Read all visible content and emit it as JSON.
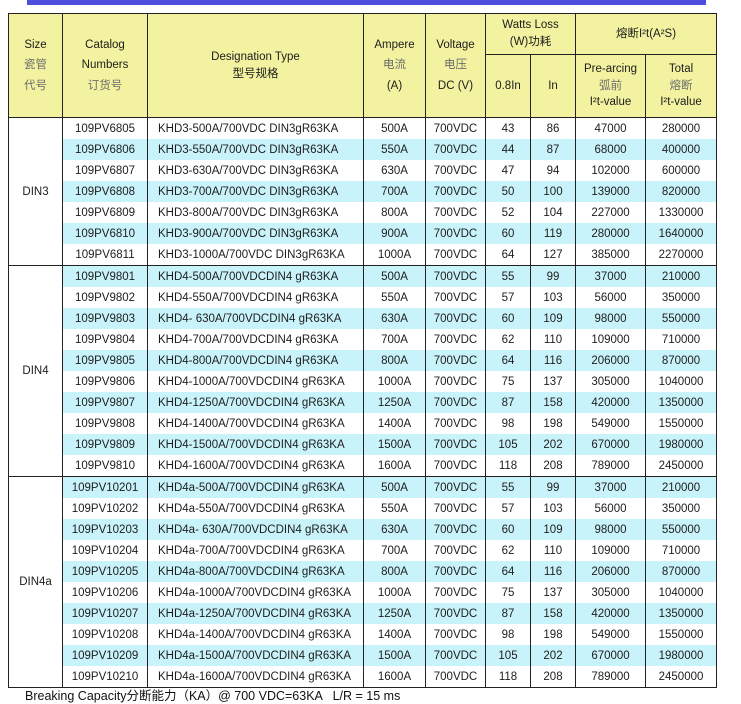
{
  "colors": {
    "accent_bar": "#4d4dde",
    "header_bg": "#f2f2a0",
    "row_highlight": "#c9f3fa",
    "border": "#222222"
  },
  "footer": {
    "note": "Breaking Capacity分断能力（KA）@ 700 VDC=63KA   L/R = 15 ms"
  },
  "table": {
    "header": {
      "size": {
        "l1": "Size",
        "l2": "瓷管",
        "l3": "代号"
      },
      "catalog": {
        "l1": "Catalog",
        "l2": "Numbers",
        "l3": "订货号"
      },
      "designation": {
        "l1": "Designation Type",
        "l2": "型号规格"
      },
      "ampere": {
        "l1": "Ampere",
        "l2": "电流",
        "l3": "(A)"
      },
      "voltage": {
        "l1": "Voltage",
        "l2": "电压",
        "l3": "DC (V)"
      },
      "watts_loss": {
        "l1": "Watts Loss",
        "l2": "(W)功耗"
      },
      "i2t": {
        "l1": "熔断I²t(A²S)"
      },
      "sub_08in": "0.8In",
      "sub_in": "In",
      "prearcing": {
        "l1": "Pre-arcing",
        "l2": "弧前",
        "l3": "I²t-value"
      },
      "total": {
        "l1": "Total",
        "l2": "熔断",
        "l3": "I²t-value"
      }
    },
    "groups": [
      {
        "size": "DIN3",
        "rows": [
          {
            "catalog": "109PV6805",
            "designation": "KHD3-500A/700VDC DIN3gR63KA",
            "ampere": "500A",
            "voltage": "700VDC",
            "w08": "43",
            "win": "86",
            "prearcing": "47000",
            "total": "280000",
            "highlight": false
          },
          {
            "catalog": "109PV6806",
            "designation": "KHD3-550A/700VDC DIN3gR63KA",
            "ampere": "550A",
            "voltage": "700VDC",
            "w08": "44",
            "win": "87",
            "prearcing": "68000",
            "total": "400000",
            "highlight": true
          },
          {
            "catalog": "109PV6807",
            "designation": "KHD3-630A/700VDC DIN3gR63KA",
            "ampere": "630A",
            "voltage": "700VDC",
            "w08": "47",
            "win": "94",
            "prearcing": "102000",
            "total": "600000",
            "highlight": false
          },
          {
            "catalog": "109PV6808",
            "designation": "KHD3-700A/700VDC DIN3gR63KA",
            "ampere": "700A",
            "voltage": "700VDC",
            "w08": "50",
            "win": "100",
            "prearcing": "139000",
            "total": "820000",
            "highlight": true
          },
          {
            "catalog": "109PV6809",
            "designation": "KHD3-800A/700VDC DIN3gR63KA",
            "ampere": "800A",
            "voltage": "700VDC",
            "w08": "52",
            "win": "104",
            "prearcing": "227000",
            "total": "1330000",
            "highlight": false
          },
          {
            "catalog": "109PV6810",
            "designation": "KHD3-900A/700VDC DIN3gR63KA",
            "ampere": "900A",
            "voltage": "700VDC",
            "w08": "60",
            "win": "119",
            "prearcing": "280000",
            "total": "1640000",
            "highlight": true
          },
          {
            "catalog": "109PV6811",
            "designation": "KHD3-1000A/700VDC DIN3gR63KA",
            "ampere": "1000A",
            "voltage": "700VDC",
            "w08": "64",
            "win": "127",
            "prearcing": "385000",
            "total": "2270000",
            "highlight": false
          }
        ]
      },
      {
        "size": "DIN4",
        "rows": [
          {
            "catalog": "109PV9801",
            "designation": "KHD4-500A/700VDCDIN4 gR63KA",
            "ampere": "500A",
            "voltage": "700VDC",
            "w08": "55",
            "win": "99",
            "prearcing": "37000",
            "total": "210000",
            "highlight": true
          },
          {
            "catalog": "109PV9802",
            "designation": "KHD4-550A/700VDCDIN4 gR63KA",
            "ampere": "550A",
            "voltage": "700VDC",
            "w08": "57",
            "win": "103",
            "prearcing": "56000",
            "total": "350000",
            "highlight": false
          },
          {
            "catalog": "109PV9803",
            "designation": "KHD4- 630A/700VDCDIN4 gR63KA",
            "ampere": "630A",
            "voltage": "700VDC",
            "w08": "60",
            "win": "109",
            "prearcing": "98000",
            "total": "550000",
            "highlight": true
          },
          {
            "catalog": "109PV9804",
            "designation": "KHD4-700A/700VDCDIN4 gR63KA",
            "ampere": "700A",
            "voltage": "700VDC",
            "w08": "62",
            "win": "110",
            "prearcing": "109000",
            "total": "710000",
            "highlight": false
          },
          {
            "catalog": "109PV9805",
            "designation": "KHD4-800A/700VDCDIN4 gR63KA",
            "ampere": "800A",
            "voltage": "700VDC",
            "w08": "64",
            "win": "116",
            "prearcing": "206000",
            "total": "870000",
            "highlight": true
          },
          {
            "catalog": "109PV9806",
            "designation": "KHD4-1000A/700VDCDIN4 gR63KA",
            "ampere": "1000A",
            "voltage": "700VDC",
            "w08": "75",
            "win": "137",
            "prearcing": "305000",
            "total": "1040000",
            "highlight": false
          },
          {
            "catalog": "109PV9807",
            "designation": "KHD4-1250A/700VDCDIN4 gR63KA",
            "ampere": "1250A",
            "voltage": "700VDC",
            "w08": "87",
            "win": "158",
            "prearcing": "420000",
            "total": "1350000",
            "highlight": true
          },
          {
            "catalog": "109PV9808",
            "designation": "KHD4-1400A/700VDCDIN4 gR63KA",
            "ampere": "1400A",
            "voltage": "700VDC",
            "w08": "98",
            "win": "198",
            "prearcing": "549000",
            "total": "1550000",
            "highlight": false
          },
          {
            "catalog": "109PV9809",
            "designation": "KHD4-1500A/700VDCDIN4 gR63KA",
            "ampere": "1500A",
            "voltage": "700VDC",
            "w08": "105",
            "win": "202",
            "prearcing": "670000",
            "total": "1980000",
            "highlight": true
          },
          {
            "catalog": "109PV9810",
            "designation": "KHD4-1600A/700VDCDIN4 gR63KA",
            "ampere": "1600A",
            "voltage": "700VDC",
            "w08": "118",
            "win": "208",
            "prearcing": "789000",
            "total": "2450000",
            "highlight": false
          }
        ]
      },
      {
        "size": "DIN4a",
        "rows": [
          {
            "catalog": "109PV10201",
            "designation": "KHD4a-500A/700VDCDIN4 gR63KA",
            "ampere": "500A",
            "voltage": "700VDC",
            "w08": "55",
            "win": "99",
            "prearcing": "37000",
            "total": "210000",
            "highlight": true
          },
          {
            "catalog": "109PV10202",
            "designation": "KHD4a-550A/700VDCDIN4 gR63KA",
            "ampere": "550A",
            "voltage": "700VDC",
            "w08": "57",
            "win": "103",
            "prearcing": "56000",
            "total": "350000",
            "highlight": false
          },
          {
            "catalog": "109PV10203",
            "designation": "KHD4a- 630A/700VDCDIN4 gR63KA",
            "ampere": "630A",
            "voltage": "700VDC",
            "w08": "60",
            "win": "109",
            "prearcing": "98000",
            "total": "550000",
            "highlight": true
          },
          {
            "catalog": "109PV10204",
            "designation": "KHD4a-700A/700VDCDIN4 gR63KA",
            "ampere": "700A",
            "voltage": "700VDC",
            "w08": "62",
            "win": "110",
            "prearcing": "109000",
            "total": "710000",
            "highlight": false
          },
          {
            "catalog": "109PV10205",
            "designation": "KHD4a-800A/700VDCDIN4 gR63KA",
            "ampere": "800A",
            "voltage": "700VDC",
            "w08": "64",
            "win": "116",
            "prearcing": "206000",
            "total": "870000",
            "highlight": true
          },
          {
            "catalog": "109PV10206",
            "designation": "KHD4a-1000A/700VDCDIN4 gR63KA",
            "ampere": "1000A",
            "voltage": "700VDC",
            "w08": "75",
            "win": "137",
            "prearcing": "305000",
            "total": "1040000",
            "highlight": false
          },
          {
            "catalog": "109PV10207",
            "designation": "KHD4a-1250A/700VDCDIN4 gR63KA",
            "ampere": "1250A",
            "voltage": "700VDC",
            "w08": "87",
            "win": "158",
            "prearcing": "420000",
            "total": "1350000",
            "highlight": true
          },
          {
            "catalog": "109PV10208",
            "designation": "KHD4a-1400A/700VDCDIN4 gR63KA",
            "ampere": "1400A",
            "voltage": "700VDC",
            "w08": "98",
            "win": "198",
            "prearcing": "549000",
            "total": "1550000",
            "highlight": false
          },
          {
            "catalog": "109PV10209",
            "designation": "KHD4a-1500A/700VDCDIN4 gR63KA",
            "ampere": "1500A",
            "voltage": "700VDC",
            "w08": "105",
            "win": "202",
            "prearcing": "670000",
            "total": "1980000",
            "highlight": true
          },
          {
            "catalog": "109PV10210",
            "designation": "KHD4a-1600A/700VDCDIN4 gR63KA",
            "ampere": "1600A",
            "voltage": "700VDC",
            "w08": "118",
            "win": "208",
            "prearcing": "789000",
            "total": "2450000",
            "highlight": false
          }
        ]
      }
    ]
  }
}
